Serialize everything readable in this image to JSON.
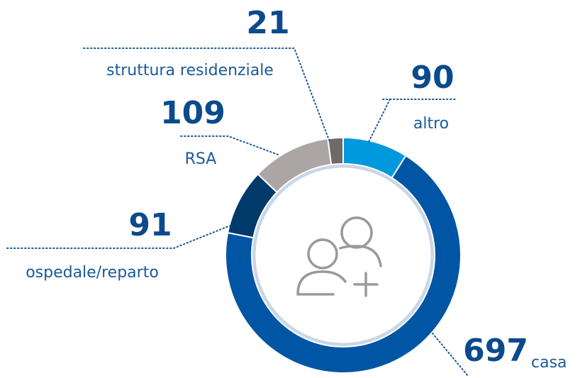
{
  "chart_data": {
    "type": "pie",
    "categories": [
      "altro",
      "casa",
      "ospedale/reparto",
      "RSA",
      "struttura residenziale"
    ],
    "values": [
      90,
      697,
      91,
      109,
      21
    ],
    "colors": [
      "#0099dd",
      "#0055a4",
      "#003a6b",
      "#aba6a3",
      "#6e6a6a"
    ]
  }
}
